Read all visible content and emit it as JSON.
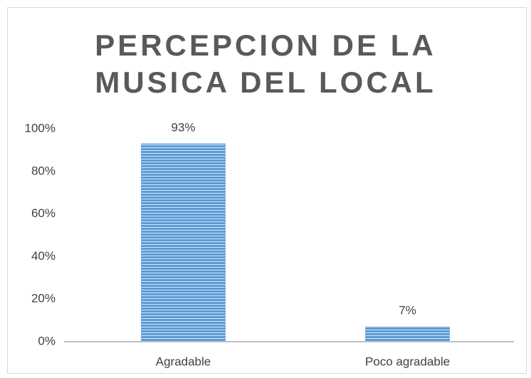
{
  "chart_data": {
    "type": "bar",
    "title": "PERCEPCION DE LA MUSICA DEL LOCAL",
    "categories": [
      "Agradable",
      "Poco agradable"
    ],
    "values": [
      93,
      7
    ],
    "value_labels": [
      "93%",
      "7%"
    ],
    "color": "#5b9bd5",
    "ylim": [
      0,
      100
    ],
    "yticks": [
      {
        "value": 0,
        "label": "0%"
      },
      {
        "value": 20,
        "label": "20%"
      },
      {
        "value": 40,
        "label": "40%"
      },
      {
        "value": 60,
        "label": "60%"
      },
      {
        "value": 80,
        "label": "80%"
      },
      {
        "value": 100,
        "label": "100%"
      }
    ],
    "grid": false
  }
}
